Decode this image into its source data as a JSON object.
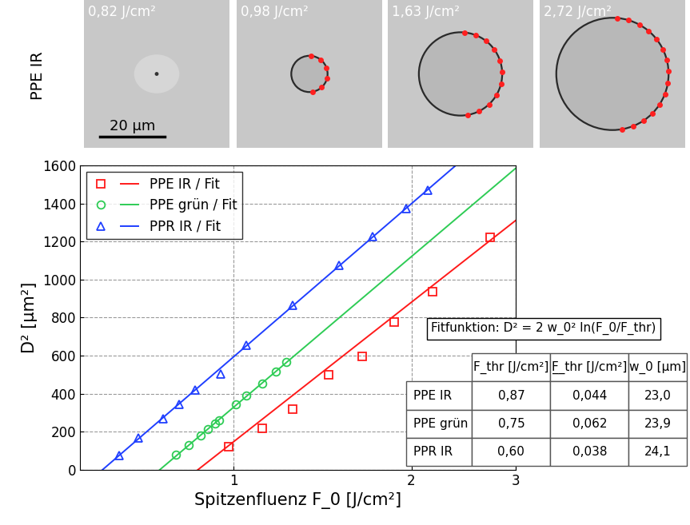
{
  "chart_data": {
    "type": "scatter",
    "x_label": "Spitzenfluenz F_0 [J/cm²]",
    "y_label": "D² [µm²]",
    "log": "x",
    "xlim": [
      0.55,
      3
    ],
    "xticks": [
      1,
      2,
      3
    ],
    "ylim": [
      0,
      1600
    ],
    "yticks": [
      0,
      200,
      400,
      600,
      800,
      1000,
      1200,
      1400,
      1600
    ],
    "grid": true,
    "legend": "upper left",
    "series": [
      {
        "name": "PPE IR / Fit",
        "color": "#ff1a1a",
        "marker": "square",
        "line_style": "solid",
        "x": [
          0.98,
          1.12,
          1.26,
          1.45,
          1.65,
          1.87,
          2.17,
          2.72
        ],
        "values": [
          120,
          220,
          320,
          500,
          595,
          775,
          935,
          1220
        ]
      },
      {
        "name": "PPE grün / Fit",
        "color": "#2ecc55",
        "marker": "circle",
        "line_style": "solid",
        "x": [
          0.8,
          0.84,
          0.88,
          0.905,
          0.93,
          0.945,
          1.01,
          1.05,
          1.12,
          1.18,
          1.23
        ],
        "values": [
          80,
          130,
          180,
          215,
          245,
          260,
          345,
          390,
          455,
          515,
          565
        ]
      },
      {
        "name": "PPR IR / Fit",
        "color": "#1f3fff",
        "marker": "triangle",
        "line_style": "solid",
        "x": [
          0.64,
          0.69,
          0.76,
          0.81,
          0.86,
          0.95,
          1.05,
          1.26,
          1.51,
          1.72,
          1.96,
          2.13
        ],
        "values": [
          75,
          170,
          270,
          345,
          420,
          505,
          655,
          865,
          1075,
          1225,
          1375,
          1470
        ]
      }
    ],
    "annotation": "Fitfunktion: D² = 2 w_0² ln(F_0/F_thr)",
    "table": {
      "header": [
        "F_thr [J/cm²]",
        "F̲_thr [J/cm²]",
        "w_0 [µm]"
      ],
      "rows": [
        {
          "name": "PPE IR",
          "cells": [
            {
              "value": 0.87,
              "label": "0,87"
            },
            {
              "value": 0.044,
              "label": "0,044"
            },
            {
              "value": 23.0,
              "label": "23,0"
            }
          ]
        },
        {
          "name": "PPE grün",
          "cells": [
            {
              "value": 0.75,
              "label": "0,75"
            },
            {
              "value": 0.062,
              "label": "0,062"
            },
            {
              "value": 23.9,
              "label": "23,9"
            }
          ]
        },
        {
          "name": "PPR IR",
          "cells": [
            {
              "value": 0.6,
              "label": "0,60"
            },
            {
              "value": 0.038,
              "label": "0,038"
            },
            {
              "value": 24.1,
              "label": "24,1"
            }
          ]
        }
      ]
    }
  },
  "micrographs": {
    "row_label": "PPE IR",
    "scale_bar": {
      "label": "20 µm",
      "value": 20
    },
    "panels": [
      {
        "label": "0,82 J/cm²",
        "value": 0.82
      },
      {
        "label": "0,98 J/cm²",
        "value": 0.98
      },
      {
        "label": "1,63 J/cm²",
        "value": 1.63
      },
      {
        "label": "2,72 J/cm²",
        "value": 2.72
      }
    ]
  }
}
